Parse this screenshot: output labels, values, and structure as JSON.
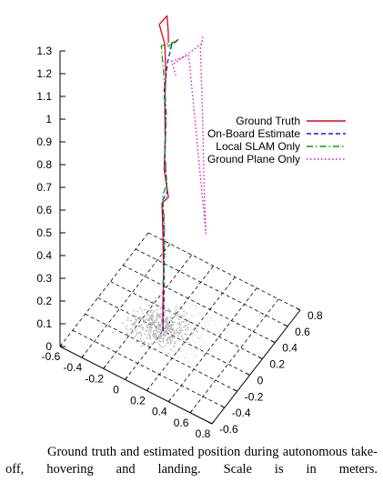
{
  "chart_data": {
    "type": "line",
    "projection": "3d",
    "zaxis": {
      "ticks": [
        "0",
        "0.1",
        "0.2",
        "0.3",
        "0.4",
        "0.5",
        "0.6",
        "0.7",
        "0.8",
        "0.9",
        "1",
        "1.1",
        "1.2",
        "1.3"
      ],
      "zlim": [
        0,
        1.3
      ]
    },
    "xaxis": {
      "ticks": [
        "-0.6",
        "-0.4",
        "-0.2",
        "0",
        "0.2",
        "0.4",
        "0.6",
        "0.8"
      ],
      "xlim": [
        -0.6,
        0.8
      ]
    },
    "yaxis": {
      "ticks": [
        "-0.6",
        "-0.4",
        "-0.2",
        "0",
        "0.2",
        "0.4",
        "0.6",
        "0.8"
      ],
      "ylim": [
        -0.6,
        0.8
      ]
    },
    "grid": true,
    "legend_position": "right",
    "series": [
      {
        "name": "Ground Truth",
        "color": "#e8001c",
        "dash": "solid",
        "trajectory": [
          [
            0.0,
            0.0,
            0.0
          ],
          [
            0.0,
            0.0,
            0.12
          ],
          [
            0.0,
            0.01,
            0.25
          ],
          [
            0.0,
            0.0,
            0.42
          ],
          [
            -0.02,
            0.02,
            0.55
          ],
          [
            0.05,
            0.0,
            0.6
          ],
          [
            0.0,
            0.02,
            0.7
          ],
          [
            0.02,
            0.0,
            0.85
          ],
          [
            0.0,
            0.03,
            1.0
          ],
          [
            0.02,
            0.01,
            1.12
          ],
          [
            0.0,
            0.03,
            1.25
          ],
          [
            -0.08,
            0.08,
            1.3
          ],
          [
            -0.05,
            0.15,
            1.32
          ],
          [
            0.02,
            0.05,
            1.3
          ],
          [
            0.05,
            0.0,
            1.28
          ]
        ]
      },
      {
        "name": "On-Board Estimate",
        "color": "#1a1acc",
        "dash": "dashed",
        "trajectory": [
          [
            0.0,
            0.0,
            0.0
          ],
          [
            0.01,
            0.0,
            0.15
          ],
          [
            0.0,
            0.02,
            0.3
          ],
          [
            0.01,
            0.0,
            0.45
          ],
          [
            -0.02,
            0.03,
            0.56
          ],
          [
            0.04,
            0.0,
            0.62
          ],
          [
            0.0,
            0.03,
            0.74
          ],
          [
            0.02,
            0.01,
            0.9
          ],
          [
            0.0,
            0.02,
            1.05
          ],
          [
            0.03,
            0.02,
            1.18
          ],
          [
            0.05,
            0.05,
            1.25
          ],
          [
            0.1,
            0.08,
            1.28
          ],
          [
            0.04,
            0.1,
            1.24
          ]
        ]
      },
      {
        "name": "Local SLAM Only",
        "color": "#0aa000",
        "dash": "dashdot",
        "trajectory": [
          [
            0.0,
            0.0,
            0.2
          ],
          [
            0.01,
            0.01,
            0.35
          ],
          [
            0.0,
            0.02,
            0.48
          ],
          [
            -0.02,
            0.03,
            0.58
          ],
          [
            0.03,
            0.01,
            0.65
          ],
          [
            0.0,
            0.03,
            0.78
          ],
          [
            0.02,
            0.02,
            0.95
          ],
          [
            0.0,
            0.02,
            1.1
          ],
          [
            -0.05,
            0.06,
            1.22
          ],
          [
            0.08,
            0.1,
            1.26
          ],
          [
            -0.03,
            0.12,
            1.2
          ],
          [
            0.06,
            0.04,
            1.24
          ]
        ]
      },
      {
        "name": "Ground Plane Only",
        "color": "#d60fc8",
        "dash": "dotted",
        "trajectory": [
          [
            0.1,
            0.0,
            1.2
          ],
          [
            0.2,
            0.05,
            1.25
          ],
          [
            0.3,
            0.1,
            1.3
          ],
          [
            0.25,
            0.2,
            1.28
          ],
          [
            0.2,
            0.25,
            1.2
          ],
          [
            0.22,
            0.25,
            0.9
          ],
          [
            0.24,
            0.24,
            0.6
          ],
          [
            0.25,
            0.25,
            0.4
          ],
          [
            0.18,
            0.1,
            1.22
          ],
          [
            0.05,
            0.05,
            1.18
          ],
          [
            0.12,
            0.0,
            1.15
          ]
        ]
      }
    ]
  },
  "caption": "Ground truth and estimated position during autonomous take-off, hovering and landing. Scale is in meters."
}
